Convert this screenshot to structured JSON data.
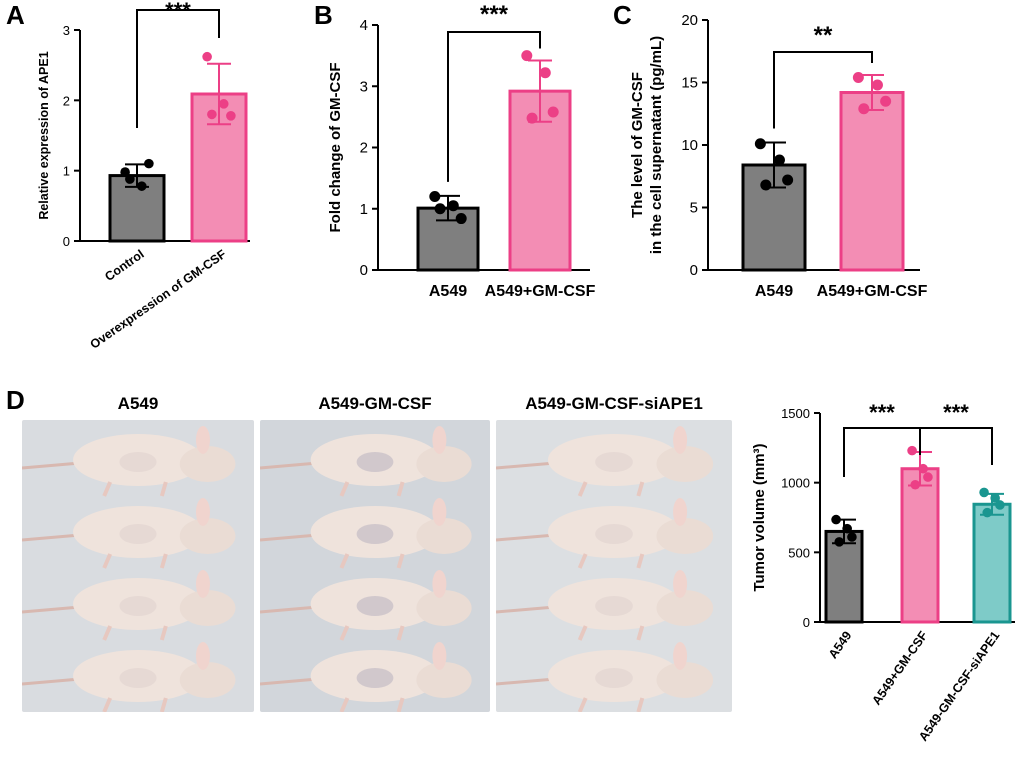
{
  "panel_letters": {
    "a": "A",
    "b": "B",
    "c": "C",
    "d": "D"
  },
  "colors": {
    "gray": "#7f7f7f",
    "pink": "#f38db4",
    "pink_edge": "#ec3f86",
    "teal": "#7ecbc8",
    "teal_edge": "#1a9690",
    "black": "#000000"
  },
  "chart_data": [
    {
      "id": "A",
      "type": "bar",
      "ylabel": "Relative expression of APE1",
      "categories": [
        "Control",
        "Overexpression of GM-CSF"
      ],
      "yticks": [
        0,
        1,
        2,
        3
      ],
      "ylim": [
        0,
        3
      ],
      "values": [
        0.93,
        2.09
      ],
      "sd": [
        0.16,
        0.43
      ],
      "points": [
        [
          0.98,
          0.78,
          1.1,
          0.88
        ],
        [
          2.62,
          1.95,
          1.78,
          1.8
        ]
      ],
      "bar_colors": [
        "gray",
        "pink"
      ],
      "significance": [
        {
          "from": 0,
          "to": 1,
          "label": "***"
        }
      ]
    },
    {
      "id": "B",
      "type": "bar",
      "ylabel": "Fold change of GM-CSF",
      "categories": [
        "A549",
        "A549+GM-CSF"
      ],
      "yticks": [
        0,
        1,
        2,
        3,
        4
      ],
      "ylim": [
        0,
        4
      ],
      "values": [
        1.01,
        2.92
      ],
      "sd": [
        0.2,
        0.5
      ],
      "points": [
        [
          1.2,
          1.05,
          0.84,
          1.0
        ],
        [
          3.5,
          3.22,
          2.58,
          2.48
        ]
      ],
      "bar_colors": [
        "gray",
        "pink"
      ],
      "significance": [
        {
          "from": 0,
          "to": 1,
          "label": "***"
        }
      ]
    },
    {
      "id": "C",
      "type": "bar",
      "ylabel": "The level of GM-CSF\nin the  cell supernatant (pg/mL)",
      "categories": [
        "A549",
        "A549+GM-CSF"
      ],
      "yticks": [
        0,
        5,
        10,
        15,
        20
      ],
      "ylim": [
        0,
        20
      ],
      "values": [
        8.4,
        14.2
      ],
      "sd": [
        1.8,
        1.4
      ],
      "points": [
        [
          10.1,
          8.8,
          7.2,
          6.8
        ],
        [
          15.4,
          14.8,
          13.5,
          12.9
        ]
      ],
      "bar_colors": [
        "gray",
        "pink"
      ],
      "significance": [
        {
          "from": 0,
          "to": 1,
          "label": "**"
        }
      ]
    },
    {
      "id": "D",
      "type": "bar",
      "ylabel": "Tumor volume (mm³)",
      "categories": [
        "A549",
        "A549+GM-CSF",
        "A549-GM-CSF-siAPE1"
      ],
      "yticks": [
        0,
        500,
        1000,
        1500
      ],
      "ylim": [
        0,
        1500
      ],
      "values": [
        650,
        1100,
        845
      ],
      "sd": [
        85,
        120,
        75
      ],
      "points": [
        [
          735,
          670,
          610,
          575
        ],
        [
          1230,
          1100,
          1040,
          985
        ],
        [
          930,
          890,
          840,
          785
        ]
      ],
      "bar_colors": [
        "gray",
        "pink",
        "teal"
      ],
      "significance": [
        {
          "from": 0,
          "to": 1,
          "label": "***"
        },
        {
          "from": 1,
          "to": 2,
          "label": "***"
        }
      ]
    }
  ],
  "photos": {
    "titles": [
      "A549",
      "A549-GM-CSF",
      "A549-GM-CSF-siAPE1"
    ]
  }
}
